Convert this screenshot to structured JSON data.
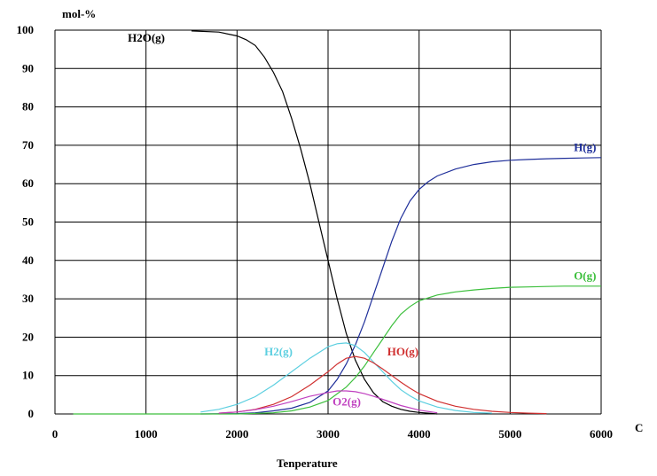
{
  "chart_data": {
    "type": "line",
    "ylabel": "mol-%",
    "xlabel": "Tenperature",
    "xunit": "C",
    "xlim": [
      0,
      6000
    ],
    "ylim": [
      0,
      100
    ],
    "xticks": [
      0,
      1000,
      2000,
      3000,
      4000,
      5000,
      6000
    ],
    "yticks": [
      0,
      10,
      20,
      30,
      40,
      50,
      60,
      70,
      80,
      90,
      100
    ],
    "grid": true,
    "series": [
      {
        "name": "H2O(g)",
        "color": "#000000",
        "x": [
          1500,
          1800,
          2000,
          2100,
          2200,
          2300,
          2400,
          2500,
          2600,
          2700,
          2800,
          2900,
          3000,
          3100,
          3200,
          3300,
          3400,
          3500,
          3600,
          3700,
          3800,
          3900,
          4000,
          4100,
          4200
        ],
        "values": [
          99.8,
          99.5,
          98.5,
          97.5,
          96,
          93,
          89,
          84,
          77,
          69,
          60,
          50,
          40,
          30,
          21,
          14,
          9,
          5.5,
          3.2,
          2,
          1.2,
          0.7,
          0.4,
          0.2,
          0
        ]
      },
      {
        "name": "H(g)",
        "color": "#1f2f9a",
        "x": [
          1600,
          2000,
          2200,
          2400,
          2600,
          2800,
          3000,
          3100,
          3200,
          3300,
          3400,
          3500,
          3600,
          3700,
          3800,
          3900,
          4000,
          4100,
          4200,
          4400,
          4600,
          4800,
          5000,
          5200,
          5400,
          5600,
          5800,
          6000
        ],
        "values": [
          0,
          0.1,
          0.3,
          0.8,
          1.5,
          3,
          6,
          9,
          13,
          18,
          24,
          31,
          38,
          45,
          51,
          55.5,
          58.5,
          60.5,
          62,
          63.8,
          65,
          65.7,
          66.1,
          66.3,
          66.5,
          66.6,
          66.7,
          66.8
        ]
      },
      {
        "name": "O(g)",
        "color": "#3cbf3c",
        "x": [
          200,
          2000,
          2400,
          2600,
          2800,
          3000,
          3200,
          3300,
          3400,
          3500,
          3600,
          3700,
          3800,
          3900,
          4000,
          4200,
          4400,
          4600,
          4800,
          5000,
          5200,
          5400,
          5600,
          5800,
          6000
        ],
        "values": [
          0,
          0,
          0.3,
          0.8,
          1.8,
          3.5,
          7,
          9.5,
          12.5,
          16,
          19.5,
          23,
          26,
          28,
          29.5,
          31,
          31.8,
          32.3,
          32.7,
          33,
          33.1,
          33.2,
          33.3,
          33.3,
          33.3
        ]
      },
      {
        "name": "H2(g)",
        "color": "#5ccfe0",
        "x": [
          1600,
          1800,
          2000,
          2200,
          2400,
          2600,
          2800,
          3000,
          3100,
          3200,
          3300,
          3400,
          3500,
          3600,
          3700,
          3800,
          3900,
          4000,
          4200,
          4400,
          4600,
          4800
        ],
        "values": [
          0.5,
          1.2,
          2.5,
          4.5,
          7.5,
          11,
          14.5,
          17.5,
          18.3,
          18.5,
          17.8,
          16,
          13.5,
          11,
          8.5,
          6.3,
          4.7,
          3.4,
          1.8,
          0.9,
          0.4,
          0.2
        ]
      },
      {
        "name": "HO(g)",
        "color": "#d03030",
        "x": [
          1800,
          2000,
          2200,
          2400,
          2600,
          2800,
          3000,
          3100,
          3200,
          3300,
          3400,
          3500,
          3600,
          3700,
          3800,
          3900,
          4000,
          4200,
          4400,
          4600,
          4800,
          5000,
          5200,
          5400
        ],
        "values": [
          0.2,
          0.5,
          1.2,
          2.5,
          4.5,
          7.5,
          11,
          13,
          14.5,
          15,
          14.5,
          13.3,
          11.7,
          10,
          8.3,
          6.7,
          5.3,
          3.3,
          2,
          1.2,
          0.7,
          0.4,
          0.2,
          0.1
        ]
      },
      {
        "name": "O2(g)",
        "color": "#c040c0",
        "x": [
          1800,
          2000,
          2200,
          2400,
          2600,
          2800,
          3000,
          3100,
          3200,
          3300,
          3400,
          3500,
          3600,
          3700,
          3800,
          4000,
          4200
        ],
        "values": [
          0.2,
          0.5,
          1.1,
          2,
          3.2,
          4.6,
          5.6,
          6,
          6,
          5.8,
          5.3,
          4.6,
          3.8,
          3,
          2.2,
          1,
          0.3
        ]
      }
    ],
    "labels": [
      {
        "text": "H2O(g)",
        "x": 800,
        "y": 97,
        "color": "#000000"
      },
      {
        "text": "H(g)",
        "x": 5700,
        "y": 68.5,
        "color": "#1f2f9a"
      },
      {
        "text": "O(g)",
        "x": 5700,
        "y": 35,
        "color": "#3cbf3c"
      },
      {
        "text": "H2(g)",
        "x": 2300,
        "y": 15.3,
        "color": "#5ccfe0"
      },
      {
        "text": "HO(g)",
        "x": 3650,
        "y": 15.3,
        "color": "#d03030"
      },
      {
        "text": "O2(g)",
        "x": 3050,
        "y": 2.2,
        "color": "#c040c0"
      }
    ]
  }
}
